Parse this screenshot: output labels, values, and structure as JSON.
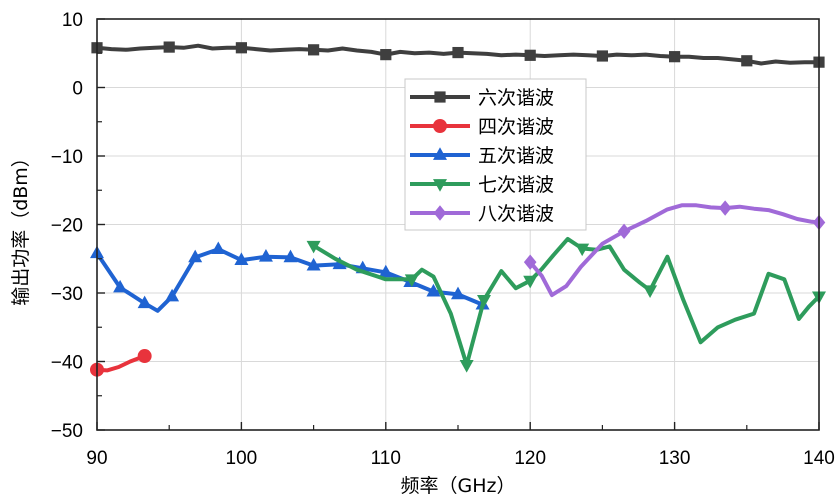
{
  "chart_data": {
    "type": "line",
    "xlabel": "频率（GHz）",
    "ylabel": "输出功率（dBm）",
    "xlim": [
      90,
      140
    ],
    "ylim": [
      -50,
      10
    ],
    "xticks": [
      90,
      100,
      110,
      120,
      130,
      140
    ],
    "yticks": [
      -50,
      -40,
      -30,
      -20,
      -10,
      0,
      10
    ],
    "grid": true,
    "legend_position": "upper-center",
    "series": [
      {
        "name": "六次谐波",
        "color": "#3f3f3f",
        "marker": "square",
        "x": [
          90,
          91,
          92,
          93,
          94,
          95,
          96,
          97,
          98,
          99,
          100,
          101,
          102,
          103,
          104,
          105,
          106,
          107,
          108,
          109,
          110,
          111,
          112,
          113,
          114,
          115,
          116,
          117,
          118,
          119,
          120,
          121,
          122,
          123,
          124,
          125,
          126,
          127,
          128,
          129,
          130,
          131,
          132,
          133,
          134,
          135,
          136,
          137,
          138,
          139,
          140
        ],
        "y": [
          5.8,
          5.6,
          5.5,
          5.7,
          5.8,
          5.9,
          5.8,
          6.1,
          5.7,
          5.8,
          5.8,
          5.6,
          5.4,
          5.5,
          5.6,
          5.5,
          5.4,
          5.7,
          5.4,
          5.2,
          4.8,
          5.2,
          5.0,
          5.1,
          4.9,
          5.1,
          5.0,
          4.9,
          4.7,
          4.8,
          4.7,
          4.6,
          4.7,
          4.8,
          4.7,
          4.6,
          4.8,
          4.7,
          4.8,
          4.6,
          4.5,
          4.5,
          4.3,
          4.3,
          4.1,
          3.9,
          3.5,
          3.8,
          3.6,
          3.7,
          3.7
        ],
        "marker_x": [
          90,
          95,
          100,
          105,
          110,
          115,
          120,
          125,
          130,
          135,
          140
        ]
      },
      {
        "name": "四次谐波",
        "color": "#e8333c",
        "marker": "circle",
        "x": [
          90,
          90.7,
          91.5,
          92.3,
          93.3
        ],
        "y": [
          -41.2,
          -41.3,
          -40.8,
          -40.0,
          -39.2
        ],
        "marker_x": [
          90,
          93.3
        ]
      },
      {
        "name": "五次谐波",
        "color": "#1f63d2",
        "marker": "triangle-up",
        "x": [
          90,
          91.6,
          93.3,
          94.2,
          95.2,
          96.8,
          98.4,
          100,
          101.7,
          103.4,
          105,
          106.8,
          108.4,
          110,
          111.7,
          113.3,
          115,
          116.7
        ],
        "y": [
          -24.2,
          -29.2,
          -31.5,
          -32.6,
          -30.5,
          -24.8,
          -23.6,
          -25.2,
          -24.7,
          -24.8,
          -26.0,
          -25.8,
          -26.4,
          -27.0,
          -28.4,
          -29.8,
          -30.2,
          -31.7
        ],
        "marker_x": [
          90,
          91.6,
          93.3,
          95.2,
          96.8,
          98.4,
          100,
          101.7,
          103.4,
          105,
          106.8,
          108.4,
          110,
          111.7,
          113.3,
          115,
          116.7
        ]
      },
      {
        "name": "七次谐波",
        "color": "#2e9c5c",
        "marker": "triangle-down",
        "x": [
          105,
          106.5,
          108,
          110,
          111.8,
          112.5,
          113.3,
          114.5,
          115.6,
          116.8,
          118,
          119,
          120,
          120.8,
          121.6,
          122.6,
          123.6,
          124.6,
          125.5,
          126.5,
          127.6,
          128.3,
          129.5,
          130.6,
          131.8,
          133,
          134.2,
          135.5,
          136.5,
          137.6,
          138.6,
          139.3,
          140
        ],
        "y": [
          -23.1,
          -25.0,
          -26.6,
          -28.0,
          -28.0,
          -26.6,
          -27.6,
          -33.0,
          -40.5,
          -31.0,
          -26.8,
          -29.3,
          -28.2,
          -26.5,
          -24.5,
          -22.1,
          -23.5,
          -23.7,
          -23.2,
          -26.6,
          -28.5,
          -29.6,
          -24.7,
          -31.0,
          -37.2,
          -35.0,
          -33.9,
          -33.0,
          -27.2,
          -28.0,
          -33.8,
          -32.0,
          -30.5
        ],
        "marker_x": [
          105,
          111.8,
          115.6,
          116.8,
          120,
          123.6,
          128.3,
          140
        ]
      },
      {
        "name": "八次谐波",
        "color": "#a06ad8",
        "marker": "diamond",
        "x": [
          120,
          120.8,
          121.5,
          122.5,
          123.5,
          125,
          126.5,
          128,
          129.5,
          130.5,
          131.5,
          132.5,
          133.5,
          134.5,
          135.5,
          136.5,
          137.5,
          138.5,
          139.5,
          140
        ],
        "y": [
          -25.5,
          -27.5,
          -30.3,
          -29.0,
          -26.2,
          -22.8,
          -21.0,
          -19.5,
          -17.8,
          -17.2,
          -17.2,
          -17.5,
          -17.6,
          -17.4,
          -17.7,
          -17.9,
          -18.5,
          -19.2,
          -19.6,
          -19.7
        ],
        "marker_x": [
          120,
          126.5,
          133.5,
          140
        ]
      }
    ]
  }
}
